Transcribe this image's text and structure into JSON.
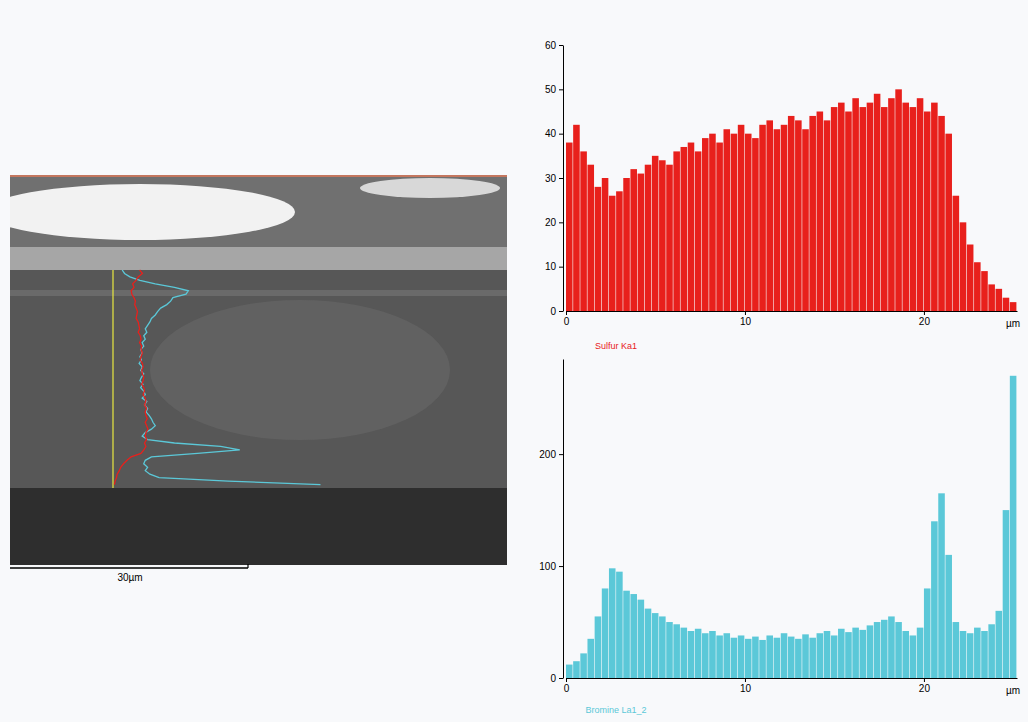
{
  "chart_data": [
    {
      "type": "bar",
      "title": "Sulfur Ka1",
      "x_label": "µm",
      "color": "#e8201c",
      "x": [
        0,
        0.4,
        0.8,
        1.2,
        1.6,
        2,
        2.4,
        2.8,
        3.2,
        3.6,
        4,
        4.4,
        4.8,
        5.2,
        5.6,
        6,
        6.4,
        6.8,
        7.2,
        7.6,
        8,
        8.4,
        8.8,
        9.2,
        9.6,
        10,
        10.4,
        10.8,
        11.2,
        11.6,
        12,
        12.4,
        12.8,
        13.2,
        13.6,
        14,
        14.4,
        14.8,
        15.2,
        15.6,
        16,
        16.4,
        16.8,
        17.2,
        17.6,
        18,
        18.4,
        18.8,
        19.2,
        19.6,
        20,
        20.4,
        20.8,
        21.2,
        21.6,
        22,
        22.4,
        22.8,
        23.2,
        23.6,
        24,
        24.4,
        24.8
      ],
      "values": [
        38,
        42,
        36,
        33,
        28,
        30,
        26,
        27,
        30,
        32,
        31,
        33,
        35,
        34,
        33,
        36,
        37,
        38,
        36,
        39,
        40,
        38,
        41,
        40,
        42,
        40,
        39,
        42,
        43,
        41,
        42,
        44,
        43,
        41,
        44,
        45,
        43,
        46,
        47,
        45,
        48,
        46,
        47,
        49,
        46,
        48,
        50,
        47,
        46,
        48,
        45,
        47,
        44,
        40,
        26,
        20,
        15,
        11,
        9,
        6,
        5,
        3,
        2
      ],
      "xlim": [
        0,
        25.2
      ],
      "xticks": [
        0,
        10,
        20
      ],
      "ylim": [
        0,
        60
      ],
      "yticks": [
        0,
        10,
        20,
        30,
        40,
        50,
        60
      ]
    },
    {
      "type": "bar",
      "title": "Bromine La1_2",
      "x_label": "µm",
      "color": "#5bc8d8",
      "x": [
        0,
        0.4,
        0.8,
        1.2,
        1.6,
        2,
        2.4,
        2.8,
        3.2,
        3.6,
        4,
        4.4,
        4.8,
        5.2,
        5.6,
        6,
        6.4,
        6.8,
        7.2,
        7.6,
        8,
        8.4,
        8.8,
        9.2,
        9.6,
        10,
        10.4,
        10.8,
        11.2,
        11.6,
        12,
        12.4,
        12.8,
        13.2,
        13.6,
        14,
        14.4,
        14.8,
        15.2,
        15.6,
        16,
        16.4,
        16.8,
        17.2,
        17.6,
        18,
        18.4,
        18.8,
        19.2,
        19.6,
        20,
        20.4,
        20.8,
        21.2,
        21.6,
        22,
        22.4,
        22.8,
        23.2,
        23.6,
        24,
        24.4,
        24.8
      ],
      "values": [
        12,
        15,
        22,
        35,
        55,
        80,
        98,
        95,
        78,
        75,
        70,
        62,
        58,
        55,
        50,
        48,
        45,
        42,
        44,
        40,
        42,
        38,
        40,
        36,
        38,
        35,
        37,
        34,
        38,
        36,
        40,
        37,
        35,
        39,
        36,
        40,
        42,
        38,
        44,
        41,
        45,
        43,
        47,
        50,
        52,
        55,
        50,
        42,
        38,
        45,
        80,
        140,
        165,
        110,
        50,
        42,
        40,
        45,
        42,
        48,
        60,
        150,
        270
      ],
      "xlim": [
        0,
        25.2
      ],
      "xticks": [
        0,
        10,
        20
      ],
      "ylim": [
        0,
        285
      ],
      "yticks": [
        0,
        100,
        200
      ]
    }
  ],
  "micrograph": {
    "scale_bar_label": "30µm"
  }
}
